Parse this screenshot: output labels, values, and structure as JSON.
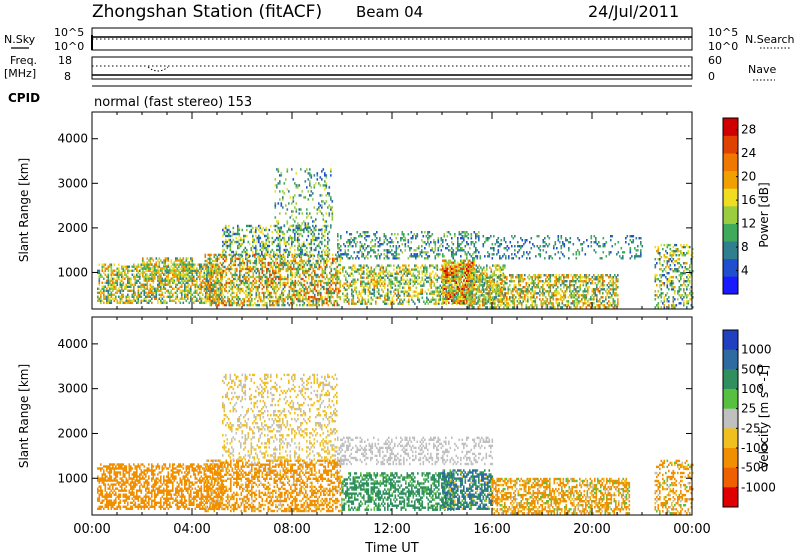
{
  "header": {
    "title": "Zhongshan Station (fitACF)",
    "beam": "Beam 04",
    "date": "24/Jul/2011"
  },
  "status_panels": {
    "nsky": {
      "label": "N.Sky",
      "tick_top": "10^5",
      "tick_bottom": "10^0"
    },
    "nsearch": {
      "label": "N.Search",
      "tick_top": "10^5",
      "tick_bottom": "10^0"
    },
    "freq": {
      "label_line1": "Freq.",
      "label_line2": "[MHz]",
      "tick_top": "18",
      "tick_bottom": "8"
    },
    "nave": {
      "label": "Nave",
      "tick_top": "60",
      "tick_bottom": "0"
    },
    "cpid": {
      "label": "CPID",
      "value": "normal (fast stereo) 153"
    }
  },
  "chart_data": [
    {
      "type": "heatmap",
      "title": "",
      "ylabel": "Slant Range [km]",
      "xlabel": "",
      "y_ticks": [
        "1000",
        "2000",
        "3000",
        "4000"
      ],
      "ylim": [
        180,
        4600
      ],
      "colorbar": {
        "label": "Power [dB]",
        "ticks": [
          "4",
          "8",
          "12",
          "16",
          "20",
          "24",
          "28"
        ],
        "range": [
          0,
          30
        ],
        "colors": [
          "#1a1aff",
          "#1f4fcf",
          "#2f7f8f",
          "#3faa5a",
          "#9ccc3f",
          "#f0dc20",
          "#f0a000",
          "#f07800",
          "#e04000",
          "#d00000"
        ]
      },
      "bands": [
        {
          "t": [
            0.2,
            5.2
          ],
          "r": [
            300,
            1200
          ],
          "d": 0.55,
          "v": [
            6,
            24
          ]
        },
        {
          "t": [
            2.0,
            4.0
          ],
          "r": [
            800,
            1300
          ],
          "d": 0.5,
          "v": [
            8,
            22
          ]
        },
        {
          "t": [
            4.5,
            9.9
          ],
          "r": [
            250,
            1400
          ],
          "d": 0.55,
          "v": [
            6,
            26
          ]
        },
        {
          "t": [
            5.2,
            9.5
          ],
          "r": [
            1350,
            2050
          ],
          "d": 0.35,
          "v": [
            4,
            18
          ]
        },
        {
          "t": [
            7.3,
            9.6
          ],
          "r": [
            1900,
            3300
          ],
          "d": 0.18,
          "v": [
            4,
            16
          ]
        },
        {
          "t": [
            9.8,
            15.5
          ],
          "r": [
            1300,
            1900
          ],
          "d": 0.3,
          "v": [
            4,
            14
          ]
        },
        {
          "t": [
            10.0,
            16.5
          ],
          "r": [
            280,
            1150
          ],
          "d": 0.45,
          "v": [
            6,
            22
          ]
        },
        {
          "t": [
            14.0,
            15.3
          ],
          "r": [
            300,
            1250
          ],
          "d": 0.75,
          "v": [
            10,
            28
          ]
        },
        {
          "t": [
            15.0,
            21.0
          ],
          "r": [
            200,
            950
          ],
          "d": 0.5,
          "v": [
            6,
            24
          ]
        },
        {
          "t": [
            15.5,
            22.0
          ],
          "r": [
            1300,
            1800
          ],
          "d": 0.2,
          "v": [
            4,
            12
          ]
        },
        {
          "t": [
            22.5,
            24.0
          ],
          "r": [
            200,
            1600
          ],
          "d": 0.35,
          "v": [
            4,
            20
          ]
        }
      ]
    },
    {
      "type": "heatmap",
      "title": "",
      "ylabel": "Slant Range [km]",
      "xlabel": "Time UT",
      "x_ticks": [
        "00:00",
        "04:00",
        "08:00",
        "12:00",
        "16:00",
        "20:00",
        "00:00"
      ],
      "y_ticks": [
        "1000",
        "2000",
        "3000",
        "4000"
      ],
      "ylim": [
        180,
        4600
      ],
      "colorbar": {
        "label": "Velocity [m s^-1]",
        "ticks": [
          "1000",
          "500",
          "100",
          "25",
          "-25",
          "-100",
          "-500",
          "-1000"
        ],
        "colors": [
          "#2040c0",
          "#2f6aa0",
          "#2f8f5f",
          "#58c040",
          "#c0c0c0",
          "#f0c020",
          "#f09000",
          "#f06000",
          "#e00000"
        ]
      },
      "bands": [
        {
          "t": [
            0.2,
            5.2
          ],
          "r": [
            300,
            1300
          ],
          "d": 0.55,
          "v": [
            -500,
            -100
          ]
        },
        {
          "t": [
            4.5,
            10.0
          ],
          "r": [
            250,
            1400
          ],
          "d": 0.5,
          "v": [
            -500,
            25
          ]
        },
        {
          "t": [
            5.2,
            9.8
          ],
          "r": [
            1400,
            3300
          ],
          "d": 0.25,
          "v": [
            -100,
            25
          ]
        },
        {
          "t": [
            9.8,
            16.0
          ],
          "r": [
            1300,
            1900
          ],
          "d": 0.3,
          "v": [
            -25,
            25
          ]
        },
        {
          "t": [
            10.0,
            14.5
          ],
          "r": [
            280,
            1100
          ],
          "d": 0.5,
          "v": [
            25,
            500
          ]
        },
        {
          "t": [
            14.0,
            16.0
          ],
          "r": [
            300,
            1200
          ],
          "d": 0.6,
          "v": [
            -100,
            1000
          ]
        },
        {
          "t": [
            16.0,
            21.5
          ],
          "r": [
            200,
            1000
          ],
          "d": 0.55,
          "v": [
            -500,
            100
          ]
        },
        {
          "t": [
            22.5,
            24.0
          ],
          "r": [
            200,
            1400
          ],
          "d": 0.35,
          "v": [
            -500,
            100
          ]
        }
      ]
    }
  ]
}
